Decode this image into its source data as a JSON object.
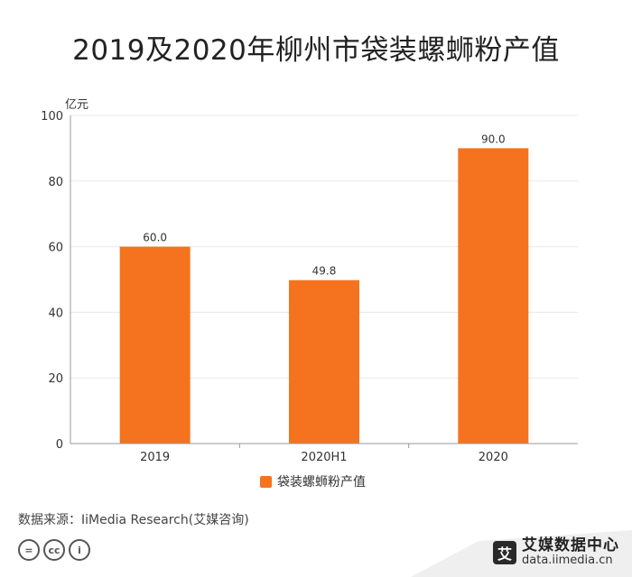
{
  "title": "2019及2020年柳州市袋装螺蛳粉产值",
  "source": "数据来源：IiMedia Research(艾媒咨询)",
  "brand": {
    "logo_char": "艾",
    "name": "艾媒数据中心",
    "url": "data.iimedia.cn"
  },
  "license_icons": [
    "equals-icon",
    "cc-icon",
    "person-icon"
  ],
  "license_labels": [
    "=",
    "cc",
    "i"
  ],
  "colors": {
    "bar": "#F5731E",
    "grid": "#E8E8E8",
    "axis": "#999999"
  },
  "chart_data": {
    "type": "bar",
    "categories": [
      "2019",
      "2020H1",
      "2020"
    ],
    "series": [
      {
        "name": "袋装螺蛳粉产值",
        "values": [
          60.0,
          49.8,
          90.0
        ]
      }
    ],
    "data_labels": [
      "60.0",
      "49.8",
      "90.0"
    ],
    "ylabel": "亿元",
    "ylim": [
      0,
      100
    ],
    "yticks": [
      0,
      20,
      40,
      60,
      80,
      100
    ],
    "grid": true,
    "legend": "bottom-center"
  }
}
